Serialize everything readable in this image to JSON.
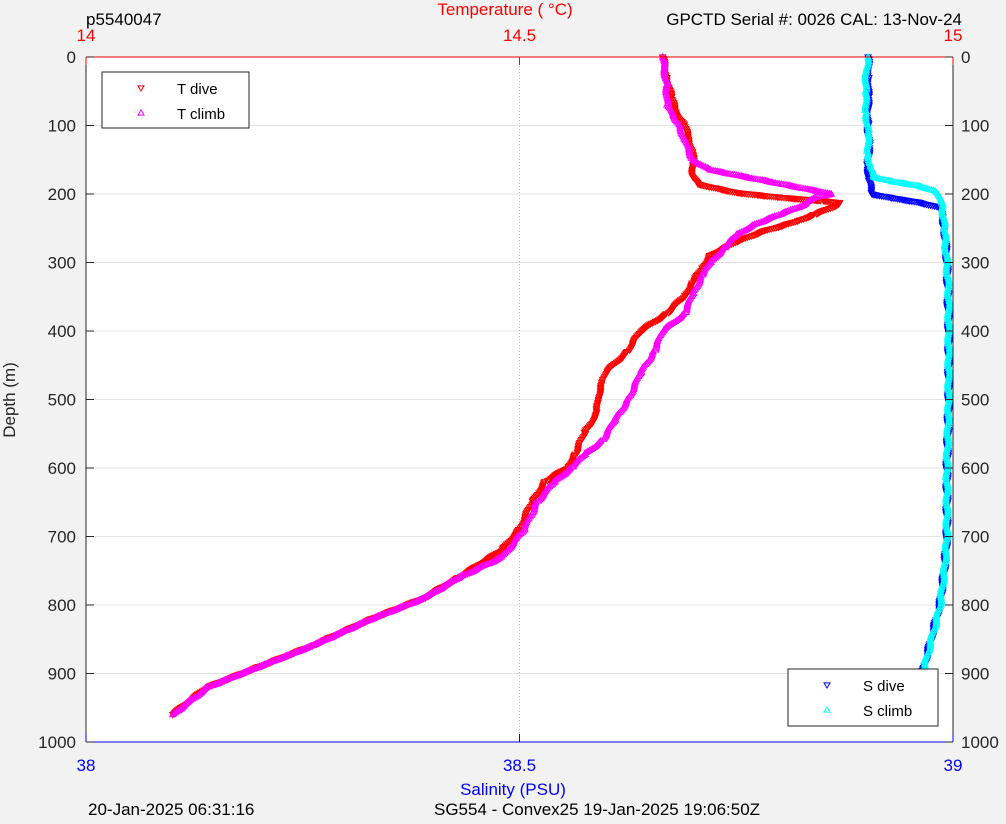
{
  "header": {
    "profile_id": "p5540047",
    "calibration": "GPCTD Serial #: 0026 CAL: 13-Nov-24"
  },
  "footer": {
    "timestamp": "20-Jan-2025 06:31:16",
    "mission": "SG554 - Convex25 19-Jan-2025 19:06:50Z"
  },
  "colors": {
    "temperature_axis": "#ff0000",
    "salinity_axis": "#0000ff",
    "t_dive": "#ff0000",
    "t_climb": "#ff00ff",
    "s_dive": "#0000ff",
    "s_climb": "#00ffff"
  },
  "chart_data": {
    "type": "scatter",
    "title": "",
    "ylabel": "Depth (m)",
    "y_reversed": true,
    "ylim": [
      0,
      1000
    ],
    "yticks": [
      0,
      100,
      200,
      300,
      400,
      500,
      600,
      700,
      800,
      900,
      1000
    ],
    "grid": true,
    "temperature_axis": {
      "label": "Temperature (    °C)",
      "position": "top",
      "range": [
        14,
        15
      ],
      "ticks": [
        "14",
        "14.5",
        "15"
      ]
    },
    "salinity_axis": {
      "label": "Salinity (PSU)",
      "position": "bottom",
      "range": [
        38,
        39
      ],
      "ticks": [
        "38",
        "38.5",
        "39"
      ]
    },
    "legends": [
      {
        "placement": "top-left",
        "entries": [
          "T dive",
          "T climb"
        ]
      },
      {
        "placement": "bottom-right",
        "entries": [
          "S dive",
          "S climb"
        ]
      }
    ],
    "series": [
      {
        "name": "T dive",
        "axis": "temperature",
        "marker": "triangle-down",
        "points": [
          [
            14.665,
            0
          ],
          [
            14.67,
            30
          ],
          [
            14.675,
            60
          ],
          [
            14.68,
            80
          ],
          [
            14.69,
            100
          ],
          [
            14.695,
            120
          ],
          [
            14.7,
            140
          ],
          [
            14.7,
            160
          ],
          [
            14.7,
            175
          ],
          [
            14.705,
            185
          ],
          [
            14.72,
            190
          ],
          [
            14.75,
            198
          ],
          [
            14.8,
            205
          ],
          [
            14.85,
            210
          ],
          [
            14.87,
            213
          ],
          [
            14.86,
            220
          ],
          [
            14.84,
            230
          ],
          [
            14.82,
            240
          ],
          [
            14.78,
            255
          ],
          [
            14.75,
            270
          ],
          [
            14.72,
            290
          ],
          [
            14.71,
            310
          ],
          [
            14.7,
            330
          ],
          [
            14.69,
            350
          ],
          [
            14.67,
            375
          ],
          [
            14.64,
            400
          ],
          [
            14.625,
            430
          ],
          [
            14.6,
            460
          ],
          [
            14.595,
            480
          ],
          [
            14.59,
            500
          ],
          [
            14.59,
            520
          ],
          [
            14.575,
            550
          ],
          [
            14.565,
            580
          ],
          [
            14.555,
            600
          ],
          [
            14.53,
            620
          ],
          [
            14.515,
            650
          ],
          [
            14.5,
            690
          ],
          [
            14.48,
            720
          ],
          [
            14.43,
            760
          ],
          [
            14.39,
            790
          ],
          [
            14.33,
            820
          ],
          [
            14.26,
            860
          ],
          [
            14.2,
            890
          ],
          [
            14.14,
            920
          ],
          [
            14.1,
            960
          ]
        ]
      },
      {
        "name": "T climb",
        "axis": "temperature",
        "marker": "triangle-up",
        "points": [
          [
            14.665,
            0
          ],
          [
            14.67,
            40
          ],
          [
            14.67,
            70
          ],
          [
            14.685,
            100
          ],
          [
            14.69,
            120
          ],
          [
            14.7,
            150
          ],
          [
            14.72,
            165
          ],
          [
            14.76,
            175
          ],
          [
            14.8,
            185
          ],
          [
            14.84,
            195
          ],
          [
            14.86,
            200
          ],
          [
            14.84,
            205
          ],
          [
            14.83,
            215
          ],
          [
            14.8,
            230
          ],
          [
            14.77,
            245
          ],
          [
            14.75,
            260
          ],
          [
            14.735,
            280
          ],
          [
            14.72,
            300
          ],
          [
            14.71,
            320
          ],
          [
            14.7,
            345
          ],
          [
            14.69,
            375
          ],
          [
            14.665,
            400
          ],
          [
            14.655,
            430
          ],
          [
            14.64,
            460
          ],
          [
            14.625,
            500
          ],
          [
            14.61,
            530
          ],
          [
            14.595,
            560
          ],
          [
            14.575,
            580
          ],
          [
            14.56,
            600
          ],
          [
            14.54,
            620
          ],
          [
            14.52,
            650
          ],
          [
            14.505,
            690
          ],
          [
            14.48,
            730
          ],
          [
            14.43,
            760
          ],
          [
            14.39,
            790
          ],
          [
            14.33,
            820
          ],
          [
            14.26,
            860
          ],
          [
            14.2,
            890
          ],
          [
            14.14,
            920
          ],
          [
            14.1,
            960
          ]
        ]
      },
      {
        "name": "S dive",
        "axis": "salinity",
        "marker": "triangle-down",
        "points": [
          [
            38.902,
            0
          ],
          [
            38.903,
            30
          ],
          [
            38.902,
            60
          ],
          [
            38.902,
            100
          ],
          [
            38.903,
            130
          ],
          [
            38.902,
            160
          ],
          [
            38.903,
            180
          ],
          [
            38.906,
            200
          ],
          [
            38.93,
            206
          ],
          [
            38.96,
            212
          ],
          [
            38.985,
            220
          ],
          [
            38.99,
            250
          ],
          [
            38.993,
            300
          ],
          [
            38.994,
            350
          ],
          [
            38.995,
            400
          ],
          [
            38.995,
            450
          ],
          [
            38.995,
            500
          ],
          [
            38.994,
            550
          ],
          [
            38.993,
            600
          ],
          [
            38.993,
            650
          ],
          [
            38.993,
            700
          ],
          [
            38.99,
            750
          ],
          [
            38.985,
            800
          ],
          [
            38.975,
            850
          ],
          [
            38.965,
            900
          ],
          [
            38.96,
            930
          ],
          [
            38.955,
            965
          ]
        ]
      },
      {
        "name": "S climb",
        "axis": "salinity",
        "marker": "triangle-up",
        "points": [
          [
            38.902,
            0
          ],
          [
            38.9,
            20
          ],
          [
            38.899,
            50
          ],
          [
            38.9,
            80
          ],
          [
            38.902,
            110
          ],
          [
            38.902,
            140
          ],
          [
            38.905,
            160
          ],
          [
            38.908,
            175
          ],
          [
            38.93,
            182
          ],
          [
            38.96,
            188
          ],
          [
            38.98,
            196
          ],
          [
            38.988,
            215
          ],
          [
            38.99,
            250
          ],
          [
            38.993,
            300
          ],
          [
            38.995,
            350
          ],
          [
            38.995,
            400
          ],
          [
            38.995,
            450
          ],
          [
            38.995,
            500
          ],
          [
            38.994,
            550
          ],
          [
            38.993,
            600
          ],
          [
            38.993,
            650
          ],
          [
            38.993,
            700
          ],
          [
            38.99,
            750
          ],
          [
            38.985,
            800
          ],
          [
            38.975,
            850
          ],
          [
            38.965,
            900
          ],
          [
            38.96,
            930
          ],
          [
            38.955,
            965
          ]
        ]
      }
    ]
  }
}
